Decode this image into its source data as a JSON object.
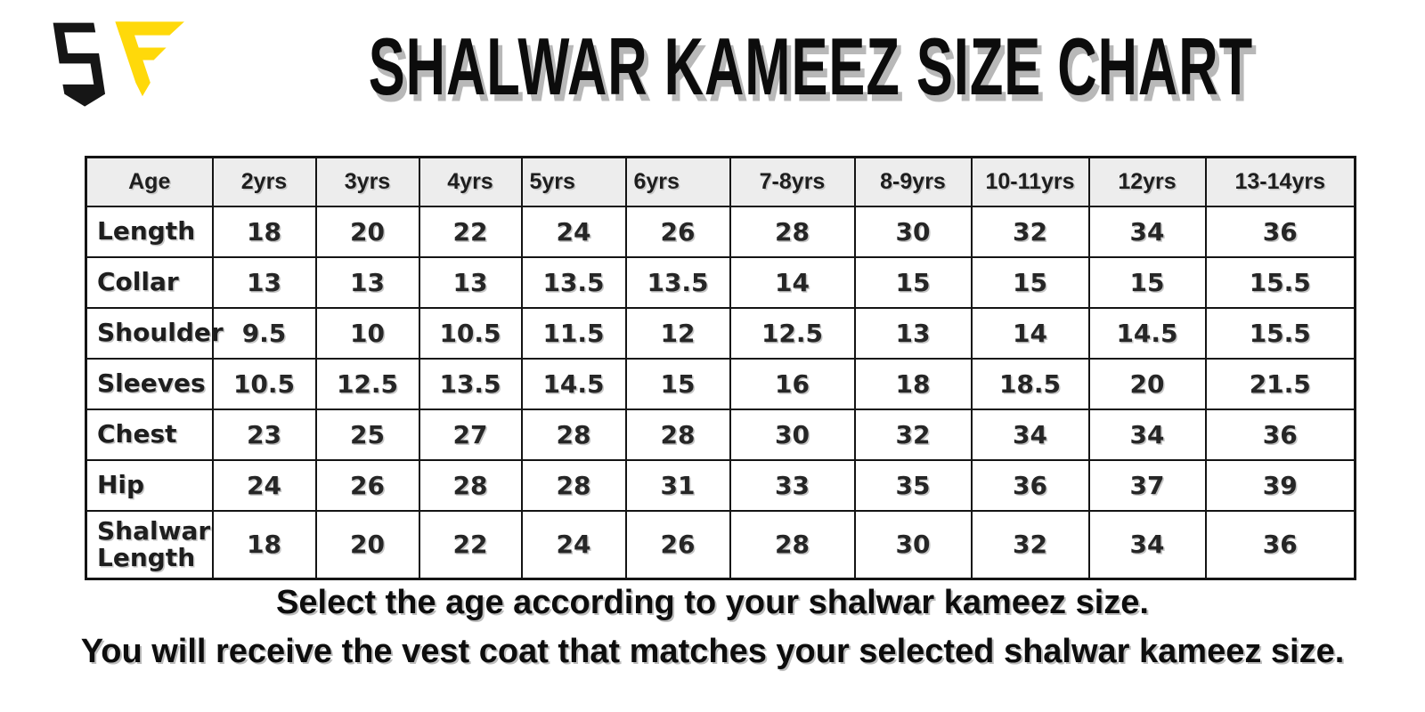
{
  "logo": {
    "name": "SF monogram",
    "letter_s_color": "#161616",
    "letter_f_color": "#FFD90A"
  },
  "title": "SHALWAR KAMEEZ SIZE CHART",
  "table": {
    "columns": [
      "Age",
      "2yrs",
      "3yrs",
      "4yrs",
      "5yrs",
      "6yrs",
      "7-8yrs",
      "8-9yrs",
      "10-11yrs",
      "12yrs",
      "13-14yrs"
    ],
    "rows": [
      {
        "label": "Length",
        "values": [
          18,
          20,
          22,
          24,
          26,
          28,
          30,
          32,
          34,
          36
        ]
      },
      {
        "label": "Collar",
        "values": [
          13,
          13,
          13,
          13.5,
          13.5,
          14,
          15,
          15,
          15,
          15.5
        ]
      },
      {
        "label": "Shoulder",
        "values": [
          9.5,
          10,
          10.5,
          11.5,
          12,
          12.5,
          13,
          14,
          14.5,
          15.5
        ]
      },
      {
        "label": "Sleeves",
        "values": [
          10.5,
          12.5,
          13.5,
          14.5,
          15,
          16,
          18,
          18.5,
          20,
          21.5
        ]
      },
      {
        "label": "Chest",
        "values": [
          23,
          25,
          27,
          28,
          28,
          30,
          32,
          34,
          34,
          36
        ]
      },
      {
        "label": "Hip",
        "values": [
          24,
          26,
          28,
          28,
          31,
          33,
          35,
          36,
          37,
          39
        ]
      },
      {
        "label": "Shalwar Length",
        "values": [
          18,
          20,
          22,
          24,
          26,
          28,
          30,
          32,
          34,
          36
        ]
      }
    ],
    "header_bg": "#ededed",
    "border_color": "#141414"
  },
  "footer": {
    "line1": "Select the age according to your shalwar kameez size.",
    "line2": "You will receive the vest coat that matches your selected shalwar kameez size."
  },
  "chart_data": {
    "type": "table",
    "title": "SHALWAR KAMEEZ SIZE CHART",
    "categories": [
      "2yrs",
      "3yrs",
      "4yrs",
      "5yrs",
      "6yrs",
      "7-8yrs",
      "8-9yrs",
      "10-11yrs",
      "12yrs",
      "13-14yrs"
    ],
    "series": [
      {
        "name": "Length",
        "values": [
          18,
          20,
          22,
          24,
          26,
          28,
          30,
          32,
          34,
          36
        ]
      },
      {
        "name": "Collar",
        "values": [
          13,
          13,
          13,
          13.5,
          13.5,
          14,
          15,
          15,
          15,
          15.5
        ]
      },
      {
        "name": "Shoulder",
        "values": [
          9.5,
          10,
          10.5,
          11.5,
          12,
          12.5,
          13,
          14,
          14.5,
          15.5
        ]
      },
      {
        "name": "Sleeves",
        "values": [
          10.5,
          12.5,
          13.5,
          14.5,
          15,
          16,
          18,
          18.5,
          20,
          21.5
        ]
      },
      {
        "name": "Chest",
        "values": [
          23,
          25,
          27,
          28,
          28,
          30,
          32,
          34,
          34,
          36
        ]
      },
      {
        "name": "Hip",
        "values": [
          24,
          26,
          28,
          28,
          31,
          33,
          35,
          36,
          37,
          39
        ]
      },
      {
        "name": "Shalwar Length",
        "values": [
          18,
          20,
          22,
          24,
          26,
          28,
          30,
          32,
          34,
          36
        ]
      }
    ],
    "notes": [
      "Select the age according to your shalwar kameez size.",
      "You will receive the vest coat that matches your selected shalwar kameez size."
    ]
  }
}
